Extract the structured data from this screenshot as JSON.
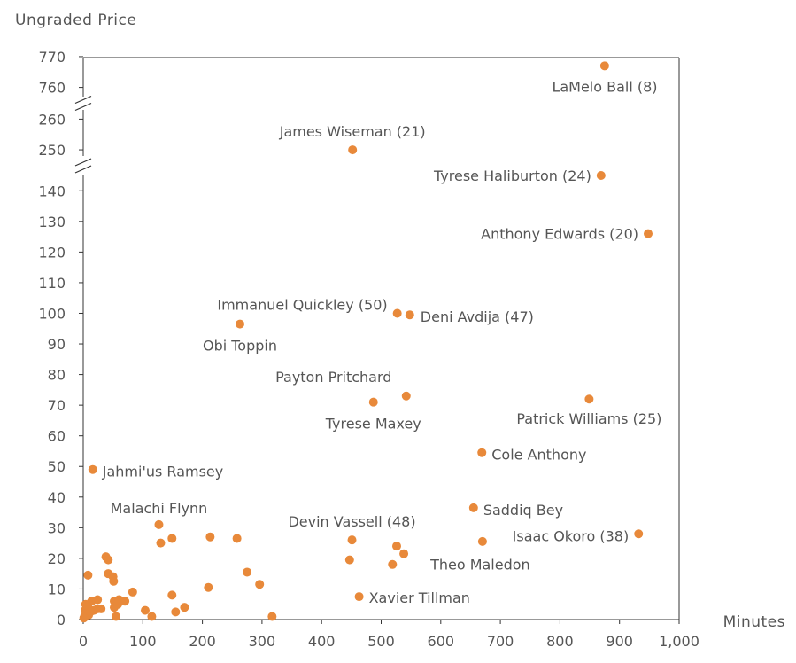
{
  "chart_data": {
    "type": "scatter",
    "xlabel": "Minutes",
    "ylabel": "Ungraded Price",
    "xlim": [
      0,
      1000
    ],
    "x_ticks": [
      0,
      100,
      200,
      300,
      400,
      500,
      600,
      700,
      800,
      900,
      1000
    ],
    "x_tick_labels": [
      "0",
      "100",
      "200",
      "300",
      "400",
      "500",
      "600",
      "700",
      "800",
      "900",
      "1,000"
    ],
    "y_axis_broken": true,
    "y_segments": [
      {
        "range": [
          0,
          145
        ],
        "ticks": [
          0,
          10,
          20,
          30,
          40,
          50,
          60,
          70,
          80,
          90,
          100,
          110,
          120,
          130,
          140
        ]
      },
      {
        "range": [
          248,
          263
        ],
        "ticks": [
          250,
          260
        ]
      },
      {
        "range": [
          757,
          772
        ],
        "ticks": [
          760,
          770
        ]
      }
    ],
    "grid": false,
    "marker_color": "#E8893A",
    "points": [
      {
        "x": 875,
        "y": 767,
        "label": "LaMelo Ball (8)"
      },
      {
        "x": 452,
        "y": 250,
        "label": "James Wiseman (21)"
      },
      {
        "x": 869,
        "y": 146,
        "label": "Tyrese Haliburton (24)"
      },
      {
        "x": 948,
        "y": 126,
        "label": "Anthony Edwards (20)"
      },
      {
        "x": 527,
        "y": 100,
        "label": "Immanuel Quickley (50)"
      },
      {
        "x": 548,
        "y": 99.5,
        "label": "Deni Avdija (47)"
      },
      {
        "x": 263,
        "y": 96.5,
        "label": "Obi Toppin"
      },
      {
        "x": 542,
        "y": 73,
        "label": "Payton Pritchard"
      },
      {
        "x": 487,
        "y": 71,
        "label": "Tyrese Maxey"
      },
      {
        "x": 849,
        "y": 72,
        "label": "Patrick Williams (25)"
      },
      {
        "x": 669,
        "y": 54.5,
        "label": "Cole Anthony"
      },
      {
        "x": 16,
        "y": 49,
        "label": "Jahmi'us Ramsey"
      },
      {
        "x": 127,
        "y": 31,
        "label": "Malachi Flynn"
      },
      {
        "x": 451,
        "y": 26,
        "label": "Devin Vassell (48)"
      },
      {
        "x": 655,
        "y": 36.5,
        "label": "Saddiq Bey"
      },
      {
        "x": 932,
        "y": 28,
        "label": "Isaac Okoro (38)"
      },
      {
        "x": 538,
        "y": 21.5,
        "label": "Theo Maledon"
      },
      {
        "x": 463,
        "y": 7.5,
        "label": "Xavier Tillman"
      },
      {
        "x": 526,
        "y": 24,
        "label": ""
      },
      {
        "x": 447,
        "y": 19.5,
        "label": ""
      },
      {
        "x": 519,
        "y": 18,
        "label": ""
      },
      {
        "x": 670,
        "y": 25.5,
        "label": ""
      },
      {
        "x": 130,
        "y": 25,
        "label": ""
      },
      {
        "x": 149,
        "y": 26.5,
        "label": ""
      },
      {
        "x": 213,
        "y": 27,
        "label": ""
      },
      {
        "x": 258,
        "y": 26.5,
        "label": ""
      },
      {
        "x": 275,
        "y": 15.5,
        "label": ""
      },
      {
        "x": 296,
        "y": 11.5,
        "label": ""
      },
      {
        "x": 210,
        "y": 10.5,
        "label": ""
      },
      {
        "x": 149,
        "y": 8,
        "label": ""
      },
      {
        "x": 170,
        "y": 4,
        "label": ""
      },
      {
        "x": 155,
        "y": 2.5,
        "label": ""
      },
      {
        "x": 104,
        "y": 3,
        "label": ""
      },
      {
        "x": 115,
        "y": 1,
        "label": ""
      },
      {
        "x": 317,
        "y": 1,
        "label": ""
      },
      {
        "x": 83,
        "y": 9,
        "label": ""
      },
      {
        "x": 38,
        "y": 20.5,
        "label": ""
      },
      {
        "x": 42,
        "y": 19.5,
        "label": ""
      },
      {
        "x": 42,
        "y": 15,
        "label": ""
      },
      {
        "x": 50,
        "y": 14,
        "label": ""
      },
      {
        "x": 51,
        "y": 12.5,
        "label": ""
      },
      {
        "x": 8,
        "y": 14.5,
        "label": ""
      },
      {
        "x": 52,
        "y": 6,
        "label": ""
      },
      {
        "x": 60,
        "y": 6.5,
        "label": ""
      },
      {
        "x": 70,
        "y": 6,
        "label": ""
      },
      {
        "x": 52,
        "y": 4,
        "label": ""
      },
      {
        "x": 58,
        "y": 5,
        "label": ""
      },
      {
        "x": 55,
        "y": 1,
        "label": ""
      },
      {
        "x": 30,
        "y": 3.5,
        "label": ""
      },
      {
        "x": 24,
        "y": 6.5,
        "label": ""
      },
      {
        "x": 14,
        "y": 6,
        "label": ""
      },
      {
        "x": 18,
        "y": 3,
        "label": ""
      },
      {
        "x": 24,
        "y": 3.5,
        "label": ""
      },
      {
        "x": 8,
        "y": 4,
        "label": ""
      },
      {
        "x": 4,
        "y": 5,
        "label": ""
      },
      {
        "x": 3,
        "y": 3,
        "label": ""
      },
      {
        "x": 6,
        "y": 2,
        "label": ""
      },
      {
        "x": 2,
        "y": 1,
        "label": ""
      },
      {
        "x": 9,
        "y": 1.5,
        "label": ""
      },
      {
        "x": 12,
        "y": 2.5,
        "label": ""
      },
      {
        "x": 1,
        "y": 0.5,
        "label": ""
      }
    ]
  }
}
